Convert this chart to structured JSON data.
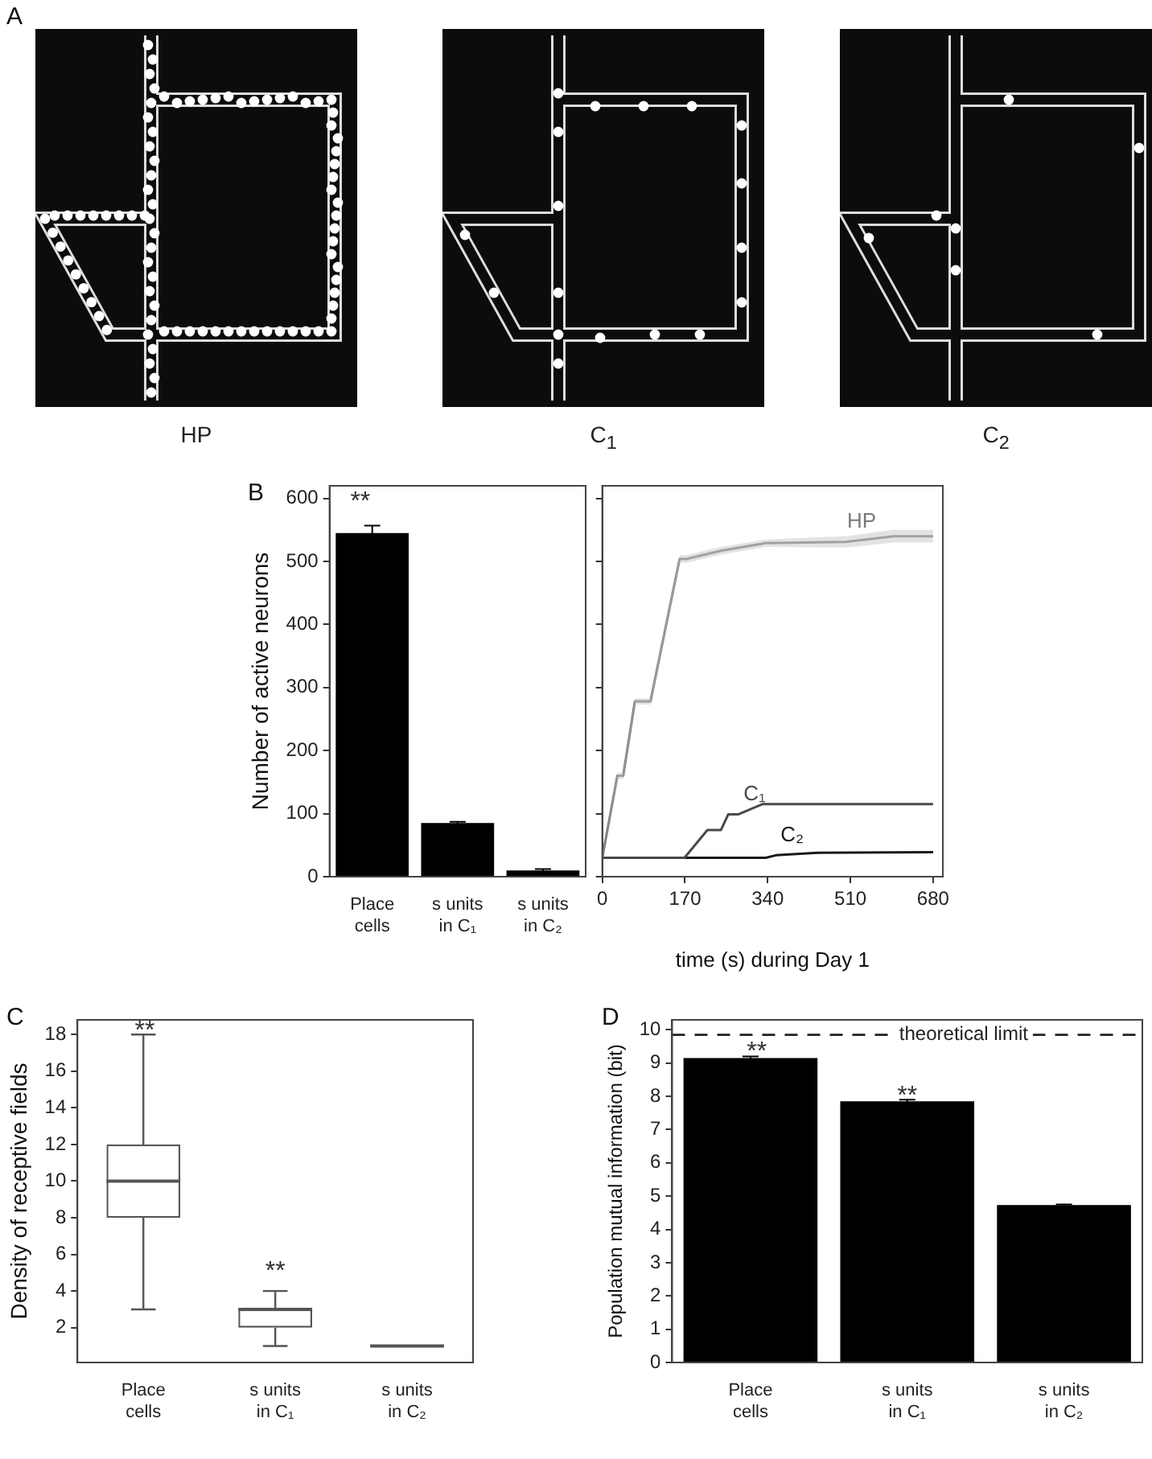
{
  "chart_data": [
    {
      "type": "other",
      "annotations": [
        "A",
        "HP",
        "C$_{1}$",
        "C$_{2}$"
      ]
    },
    {
      "type": "bar",
      "categories": [
        "Place cells",
        "s units in C₁",
        "s units in C₂"
      ],
      "values": [
        545,
        85,
        10
      ],
      "errors": [
        12,
        2,
        2
      ],
      "color": "#000000",
      "ylabel": "Number of active neurons",
      "ylim": [
        0,
        620
      ],
      "yticks": [
        0,
        100,
        200,
        300,
        400,
        500,
        600
      ],
      "annotations": [
        "B",
        "**"
      ]
    },
    {
      "type": "line",
      "xlabel": "time (s) during Day 1",
      "xlim": [
        0,
        700
      ],
      "xticks": [
        0,
        170,
        340,
        510,
        680
      ],
      "ylim": [
        0,
        620
      ],
      "yticks": [
        0,
        100,
        200,
        300,
        400,
        500,
        600
      ],
      "tick_labels": "x",
      "series": [
        {
          "name": "HP",
          "color": "#7a7a7a",
          "x": [
            0,
            31,
            43,
            67,
            99,
            159,
            173,
            244,
            336,
            500,
            599,
            680
          ],
          "values": [
            30,
            160,
            160,
            278,
            278,
            504,
            504,
            517,
            529,
            531,
            540,
            540
          ],
          "lower": [
            30,
            155,
            155,
            273,
            273,
            498,
            498,
            511,
            523,
            522,
            530,
            530
          ],
          "upper": [
            30,
            165,
            165,
            283,
            283,
            510,
            510,
            523,
            535,
            540,
            550,
            550
          ]
        },
        {
          "name": "C₁",
          "color": "#4a4a4a",
          "x": [
            0,
            169,
            216,
            244,
            259,
            280,
            329,
            680
          ],
          "values": [
            30,
            30,
            74,
            74,
            99,
            99,
            115,
            115
          ]
        },
        {
          "name": "C₂",
          "color": "#1a1a1a",
          "x": [
            0,
            336,
            357,
            443,
            680
          ],
          "values": [
            30,
            30,
            34,
            38,
            39
          ]
        }
      ]
    },
    {
      "type": "box",
      "categories": [
        "Place cells",
        "s units in C₁",
        "s units in C₂"
      ],
      "boxes": [
        {
          "low": 3,
          "q1": 8,
          "median": 10,
          "q3": 12,
          "high": 18
        },
        {
          "low": 1,
          "q1": 2,
          "median": 3,
          "q3": 3,
          "high": 4
        },
        {
          "low": 1,
          "q1": 1,
          "median": 1,
          "q3": 1,
          "high": 1
        }
      ],
      "color": "#555555",
      "ylabel": "Density of receptive fields",
      "ylim": [
        0.1,
        18.8
      ],
      "yticks": [
        2,
        4,
        6,
        8,
        10,
        12,
        14,
        16,
        18
      ],
      "annotations": [
        "C",
        "**",
        "**"
      ]
    },
    {
      "type": "bar",
      "categories": [
        "Place cells",
        "s units in C₁",
        "s units in C₂"
      ],
      "values": [
        9.15,
        7.85,
        4.73
      ],
      "errors": [
        0.05,
        0.05,
        0.02
      ],
      "color": "#000000",
      "ylabel": "Population mutual information (bit)",
      "ylim": [
        0,
        10.3
      ],
      "yticks": [
        0,
        1,
        2,
        3,
        4,
        5,
        6,
        7,
        8,
        9,
        10
      ],
      "ref_lines": [
        {
          "axis": "y",
          "value": 9.85,
          "label": "theoretical limit",
          "line_style": "dashed"
        }
      ],
      "annotations": [
        "D",
        "**",
        "**"
      ]
    }
  ]
}
